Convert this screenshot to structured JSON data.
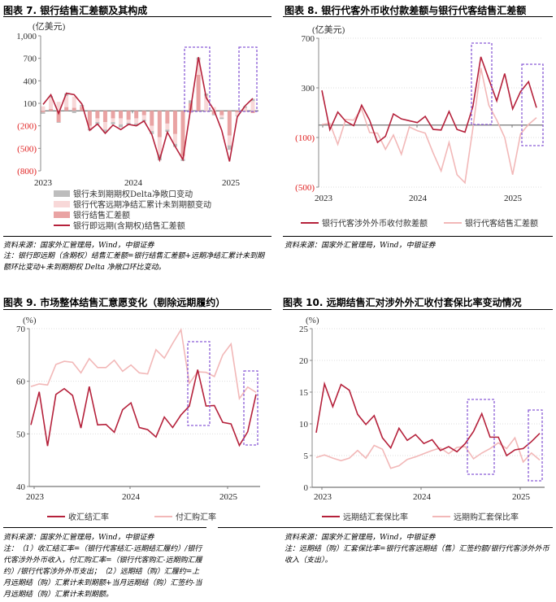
{
  "panels": [
    {
      "title": "图表 7. 银行结售汇差额及其构成",
      "source": "资料来源：国家外汇管理局，Wind，中银证券",
      "note": "注：银行即远期（含期权）结售汇差额=银行结售汇差额+远期净结汇累计未到期额环比变动+未到期期权 Delta 净敞口环比变动。"
    },
    {
      "title": "图表 8. 银行代客外币收付款差额与银行代客结售汇差额",
      "source": "资料来源：国家外汇管理局，Wind，中银证券"
    },
    {
      "title": "图表 9. 市场整体结售汇意愿变化（剔除远期履约）",
      "source": "资料来源：国家外汇管理局，Wind，中银证券",
      "note": "注：（1）收汇结汇率=（银行代客结汇-远期结汇履约）/银行代客涉外外币收入，付汇购汇率=（银行代客购汇-远期购汇履约）/银行代客涉外外币支出；（2）远期结（购）汇履约=上月远期结（购）汇累计未到期额+当月远期结（购）汇签约-当月远期结（购）汇累计未到期额。"
    },
    {
      "title": "图表 10. 远期结售汇对涉外外汇收付套保比率变动情况",
      "source": "资料来源：国家外汇管理局，Wind，中银证券",
      "note": "注：远期结（购）汇套保比率=银行代客远期结（售）汇签约额/银行代客涉外外币收入（支出）。"
    }
  ],
  "colors": {
    "dark": "#b5213b",
    "light": "#f2b8b8",
    "bar": "#e9a3a3",
    "barLight": "#f8d8d8",
    "gray": "#bdbdbd",
    "box": "#8a5cd6"
  },
  "chart_data": [
    {
      "type": "bar",
      "title": "银行结售汇差额及其构成",
      "unit": "(亿美元)",
      "ylim": [
        -800,
        1000
      ],
      "yticks": [
        1000,
        700,
        400,
        100,
        -200,
        -500,
        -800
      ],
      "ytick_labels": [
        "1,000",
        "700",
        "400",
        "100",
        "(200)",
        "(500)",
        "(800)"
      ],
      "xticks": [
        "2023",
        "2024",
        "2025"
      ],
      "x_start": "2023-01",
      "months": 28,
      "series": [
        {
          "name": "银行未到期期权Delta净敞口变动",
          "kind": "bar",
          "values": [
            -20,
            20,
            -10,
            30,
            -30,
            20,
            -20,
            -30,
            -40,
            -30,
            -40,
            -30,
            -30,
            -20,
            -40,
            -80,
            -30,
            -40,
            -30,
            40,
            30,
            30,
            -10,
            -20,
            -60,
            -10,
            20,
            30
          ]
        },
        {
          "name": "银行代客远期净结汇累计未到期额变动",
          "kind": "bar",
          "values": [
            60,
            150,
            120,
            150,
            150,
            0,
            -40,
            -50,
            -100,
            -50,
            -80,
            -40,
            -70,
            -60,
            -70,
            -230,
            -80,
            -130,
            -40,
            -30,
            200,
            200,
            50,
            -30,
            -130,
            -40,
            40,
            130
          ]
        },
        {
          "name": "银行结售汇差额",
          "kind": "bar",
          "values": [
            -20,
            25,
            -150,
            50,
            40,
            60,
            -200,
            -100,
            -150,
            -100,
            -100,
            -120,
            -100,
            -60,
            -200,
            -350,
            -170,
            -310,
            -600,
            100,
            480,
            0,
            -50,
            -60,
            -330,
            -20,
            -10,
            -30
          ]
        },
        {
          "name": "银行即远期(含期权)结售汇差额",
          "kind": "line",
          "values": [
            85,
            215,
            -35,
            235,
            215,
            90,
            -260,
            -175,
            -300,
            -190,
            -250,
            -180,
            -200,
            -135,
            -315,
            -655,
            -285,
            -475,
            -650,
            30,
            715,
            175,
            10,
            -260,
            -675,
            -80,
            65,
            165
          ]
        }
      ]
    },
    {
      "type": "line",
      "title": "银行代客外币收付款差额与银行代客结售汇差额",
      "unit": "(亿美元)",
      "ylim": [
        -500,
        700
      ],
      "yticks": [
        700,
        300,
        -100,
        -500
      ],
      "ytick_labels": [
        "700",
        "300",
        "(100)",
        "(500)"
      ],
      "xticks": [
        "2023",
        "2024",
        "2025"
      ],
      "x_start": "2023-01",
      "months": 28,
      "series": [
        {
          "name": "银行代客涉外外币收付款差额",
          "values": [
            280,
            -37,
            105,
            30,
            -5,
            160,
            40,
            -140,
            -90,
            90,
            50,
            35,
            20,
            70,
            -35,
            -40,
            110,
            -35,
            -57,
            150,
            550,
            370,
            195,
            415,
            130,
            270,
            350,
            140
          ]
        },
        {
          "name": "银行代客结售汇差额",
          "values": [
            5,
            15,
            -155,
            45,
            40,
            130,
            -60,
            -65,
            -195,
            -80,
            -235,
            -15,
            -45,
            -65,
            -225,
            -370,
            -140,
            -400,
            -465,
            -25,
            460,
            160,
            40,
            -100,
            -400,
            -70,
            5,
            60
          ]
        }
      ]
    },
    {
      "type": "line",
      "title": "市场整体结售汇意愿变化（剔除远期履约）",
      "unit": "(%)",
      "ylim": [
        40,
        70
      ],
      "yticks": [
        70,
        60,
        50,
        40
      ],
      "ytick_labels": [
        "70",
        "60",
        "50",
        "40"
      ],
      "xticks": [
        "2023",
        "2024",
        "2025"
      ],
      "x_start": "2023-01",
      "months": 28,
      "series": [
        {
          "name": "收汇结汇率",
          "values": [
            51.7,
            58,
            47.7,
            57.5,
            58.6,
            57.3,
            51.1,
            59,
            51.7,
            51.8,
            50.3,
            54.6,
            55.9,
            51.2,
            50.8,
            49.4,
            53.2,
            51.2,
            53.6,
            55.3,
            62.2,
            55.3,
            55.4,
            52.2,
            51.9,
            47.8,
            50.4,
            57.5
          ]
        },
        {
          "name": "付汇购汇率",
          "values": [
            59,
            59.5,
            59.3,
            63.2,
            63.8,
            63.6,
            61.6,
            64.3,
            62.6,
            62.6,
            64,
            61.9,
            63.1,
            61.6,
            61.4,
            66,
            64.4,
            67.2,
            69.8,
            59.6,
            61.8,
            61.7,
            60.9,
            65,
            67.1,
            56.7,
            58.9,
            57.9
          ]
        }
      ]
    },
    {
      "type": "line",
      "title": "远期结售汇对涉外外汇收付套保比率变动情况",
      "unit": "(%)",
      "ylim": [
        0,
        25
      ],
      "yticks": [
        25,
        20,
        15,
        10,
        5,
        0
      ],
      "ytick_labels": [
        "25",
        "20",
        "15",
        "10",
        "5",
        "0"
      ],
      "xticks": [
        "2023",
        "2024",
        "2025"
      ],
      "x_start": "2023-01",
      "months": 28,
      "series": [
        {
          "name": "远期结汇套保比率",
          "values": [
            8.6,
            16.3,
            12.7,
            16.2,
            15.3,
            11.5,
            9.9,
            11.3,
            7.8,
            6.2,
            9.3,
            7.4,
            8.3,
            6.9,
            7.5,
            5.8,
            6.4,
            5.6,
            6.9,
            8.8,
            11.6,
            7.9,
            7.9,
            5,
            5.9,
            6.1,
            7.2,
            8.5
          ]
        },
        {
          "name": "远期购汇套保比率",
          "values": [
            4.7,
            5.1,
            4.6,
            4.2,
            4.6,
            5.8,
            4.6,
            6.6,
            6,
            3,
            3.4,
            4.4,
            4.8,
            5.3,
            5.8,
            6.2,
            5.3,
            6.3,
            6.4,
            4.5,
            5.4,
            6.1,
            7,
            6.1,
            7.8,
            4,
            5.4,
            4.3
          ]
        }
      ]
    }
  ]
}
